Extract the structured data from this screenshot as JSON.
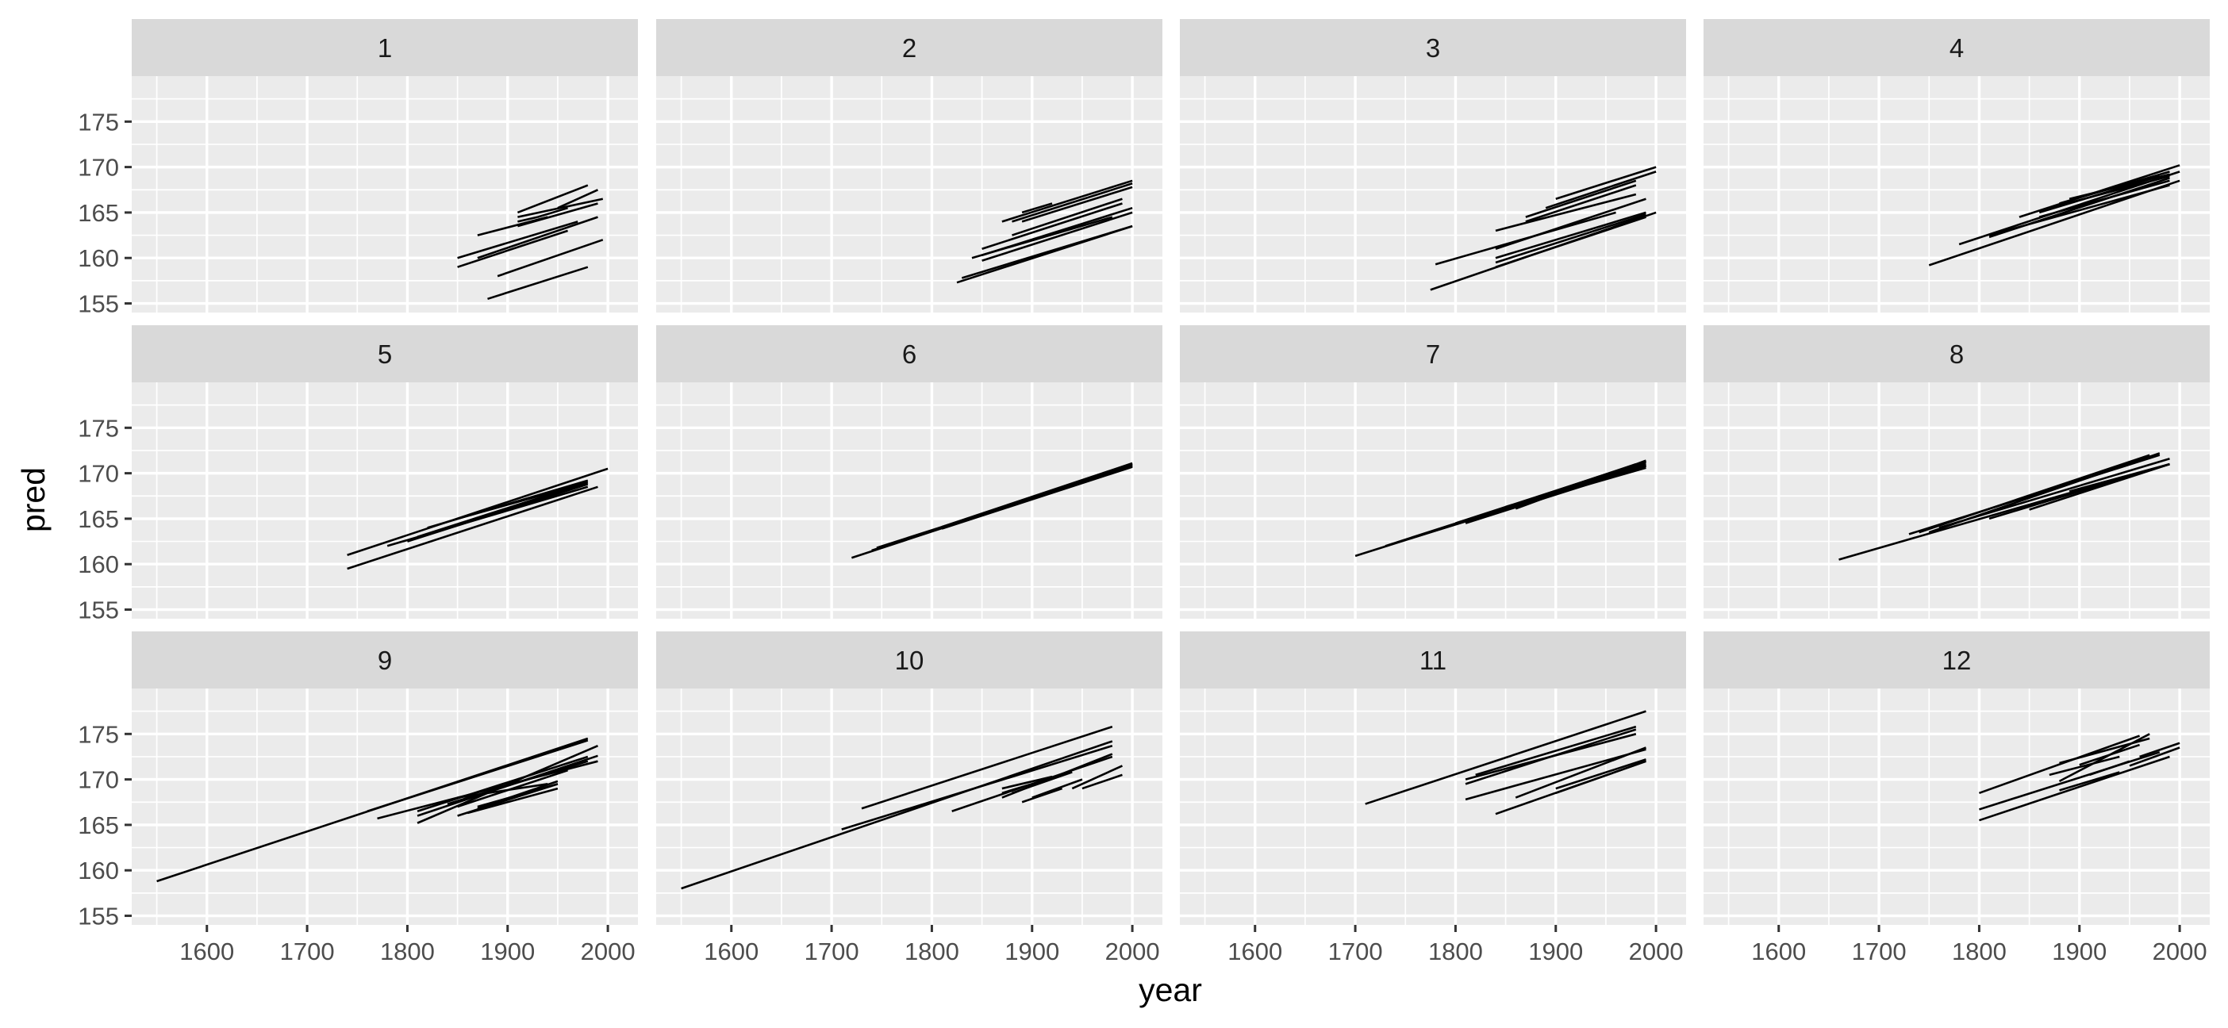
{
  "chart_data": {
    "type": "line",
    "facet_layout": {
      "ncol": 4,
      "nrow": 3
    },
    "xlabel": "year",
    "ylabel": "pred",
    "xlim": [
      1525,
      2030
    ],
    "ylim": [
      154,
      180
    ],
    "x_ticks": [
      1600,
      1700,
      1800,
      1900,
      2000
    ],
    "y_ticks": [
      155,
      160,
      165,
      170,
      175
    ],
    "grid": true,
    "facets": [
      {
        "label": "1",
        "segments": [
          [
            1880,
            155.5,
            1980,
            159
          ],
          [
            1890,
            158,
            1995,
            162
          ],
          [
            1850,
            159,
            1960,
            163
          ],
          [
            1870,
            160,
            1990,
            164.5
          ],
          [
            1850,
            160,
            1970,
            164
          ],
          [
            1870,
            162.5,
            1940,
            164.5
          ],
          [
            1910,
            164,
            1930,
            164.5
          ],
          [
            1910,
            163.5,
            1990,
            166
          ],
          [
            1910,
            164.5,
            1995,
            166.5
          ],
          [
            1910,
            165,
            1980,
            168
          ],
          [
            1950,
            165.5,
            1990,
            167.5
          ],
          [
            1930,
            164.5,
            1960,
            165.5
          ]
        ]
      },
      {
        "label": "2",
        "segments": [
          [
            1825,
            157.3,
            2000,
            163.5
          ],
          [
            1830,
            157.8,
            2000,
            163.5
          ],
          [
            1850,
            159.7,
            2000,
            165
          ],
          [
            1850,
            161,
            1990,
            166
          ],
          [
            1880,
            162.5,
            1990,
            166.5
          ],
          [
            1870,
            164,
            2000,
            168.5
          ],
          [
            1880,
            164,
            2000,
            168.2
          ],
          [
            1890,
            164,
            2000,
            167.8
          ],
          [
            1890,
            165,
            1920,
            166
          ],
          [
            1850,
            160.3,
            2000,
            165.5
          ],
          [
            1840,
            160,
            1980,
            164.5
          ]
        ]
      },
      {
        "label": "3",
        "segments": [
          [
            1775,
            156.5,
            2000,
            165
          ],
          [
            1780,
            159.3,
            1960,
            165
          ],
          [
            1840,
            159,
            1990,
            164.5
          ],
          [
            1840,
            159.5,
            1990,
            164.8
          ],
          [
            1840,
            160,
            1990,
            165
          ],
          [
            1840,
            161,
            1990,
            166.5
          ],
          [
            1840,
            163,
            1980,
            167
          ],
          [
            1870,
            164,
            1980,
            168
          ],
          [
            1870,
            164.5,
            1980,
            168.5
          ],
          [
            1890,
            165.5,
            2000,
            169.5
          ],
          [
            1900,
            166.5,
            2000,
            170
          ]
        ]
      },
      {
        "label": "4",
        "segments": [
          [
            1750,
            159.2,
            2000,
            168.5
          ],
          [
            1780,
            161.5,
            2000,
            169.5
          ],
          [
            1810,
            162.5,
            1990,
            168
          ],
          [
            1860,
            164.5,
            1990,
            168.5
          ],
          [
            1860,
            165,
            1980,
            169
          ],
          [
            1840,
            164.5,
            2000,
            170.2
          ],
          [
            1870,
            165.5,
            1990,
            169
          ],
          [
            1880,
            166,
            1990,
            169.5
          ],
          [
            1890,
            166.5,
            1990,
            169.2
          ],
          [
            1810,
            162.3,
            1990,
            168.8
          ]
        ]
      },
      {
        "label": "5",
        "segments": [
          [
            1740,
            159.5,
            1990,
            168.5
          ],
          [
            1740,
            161,
            2000,
            170.5
          ],
          [
            1780,
            162,
            1980,
            168.5
          ],
          [
            1810,
            163,
            1980,
            169
          ],
          [
            1800,
            162.5,
            1980,
            168.8
          ],
          [
            1850,
            165,
            1980,
            169
          ],
          [
            1820,
            164,
            1980,
            169.2
          ]
        ]
      },
      {
        "label": "6",
        "segments": [
          [
            1720,
            160.7,
            2000,
            170.8
          ],
          [
            1740,
            161.5,
            2000,
            171
          ],
          [
            1745,
            161.8,
            2000,
            170.8
          ],
          [
            1760,
            162.2,
            2000,
            171
          ],
          [
            1800,
            163.7,
            2000,
            170.9
          ],
          [
            1810,
            164.1,
            2000,
            171.1
          ],
          [
            1810,
            163.9,
            2000,
            170.7
          ]
        ]
      },
      {
        "label": "7",
        "segments": [
          [
            1700,
            160.9,
            1990,
            171
          ],
          [
            1730,
            162,
            1990,
            171.2
          ],
          [
            1760,
            163,
            1990,
            170.8
          ],
          [
            1800,
            164.5,
            1990,
            171.3
          ],
          [
            1810,
            164.5,
            1990,
            170.8
          ],
          [
            1830,
            165.5,
            1980,
            171
          ],
          [
            1850,
            166.3,
            1990,
            170.9
          ],
          [
            1860,
            166.1,
            1990,
            171.4
          ],
          [
            1870,
            166.8,
            1990,
            170.6
          ]
        ]
      },
      {
        "label": "8",
        "segments": [
          [
            1660,
            160.5,
            1990,
            171
          ],
          [
            1730,
            163.3,
            1980,
            172
          ],
          [
            1750,
            163.5,
            1980,
            172.2
          ],
          [
            1760,
            164,
            1990,
            171.6
          ],
          [
            1740,
            163.5,
            1970,
            172
          ],
          [
            1810,
            165,
            1990,
            171
          ],
          [
            1850,
            166,
            1990,
            171
          ],
          [
            1890,
            168,
            1990,
            171
          ]
        ]
      },
      {
        "label": "9",
        "segments": [
          [
            1550,
            158.8,
            1980,
            174.5
          ],
          [
            1760,
            166.5,
            1980,
            174.3
          ],
          [
            1770,
            165.7,
            1990,
            172
          ],
          [
            1810,
            165.2,
            1990,
            173.7
          ],
          [
            1810,
            166,
            1990,
            172.6
          ],
          [
            1810,
            166.5,
            1980,
            172.5
          ],
          [
            1840,
            167.3,
            1980,
            172
          ],
          [
            1850,
            167,
            1960,
            171
          ],
          [
            1850,
            166,
            1950,
            169.5
          ],
          [
            1860,
            166.3,
            1950,
            169
          ],
          [
            1870,
            166.8,
            1950,
            169.8
          ],
          [
            1850,
            168,
            1940,
            169.5
          ],
          [
            1870,
            167,
            1950,
            169.5
          ]
        ]
      },
      {
        "label": "10",
        "segments": [
          [
            1550,
            158,
            1980,
            174.2
          ],
          [
            1710,
            164.5,
            1980,
            173.7
          ],
          [
            1730,
            166.8,
            1980,
            175.8
          ],
          [
            1820,
            166.5,
            1980,
            172.5
          ],
          [
            1870,
            168,
            1980,
            172.8
          ],
          [
            1870,
            168.5,
            1930,
            170.5
          ],
          [
            1880,
            168.5,
            1940,
            170.8
          ],
          [
            1890,
            167.5,
            1930,
            169
          ],
          [
            1940,
            169,
            1990,
            171.5
          ],
          [
            1950,
            169,
            1990,
            170.5
          ],
          [
            1900,
            168,
            1950,
            170
          ],
          [
            1870,
            169,
            1920,
            170.3
          ]
        ]
      },
      {
        "label": "11",
        "segments": [
          [
            1710,
            167.3,
            1990,
            177.5
          ],
          [
            1810,
            169.5,
            1980,
            175.5
          ],
          [
            1810,
            170,
            1980,
            175
          ],
          [
            1820,
            170.5,
            1980,
            175.8
          ],
          [
            1810,
            167.8,
            1990,
            173.3
          ],
          [
            1840,
            166.2,
            1990,
            172
          ],
          [
            1860,
            168,
            1990,
            173.5
          ],
          [
            1900,
            168.5,
            1990,
            172
          ],
          [
            1900,
            169,
            1990,
            172.2
          ]
        ]
      },
      {
        "label": "12",
        "segments": [
          [
            1800,
            165.5,
            1990,
            172.5
          ],
          [
            1800,
            166.7,
            1980,
            173
          ],
          [
            1800,
            168.5,
            1960,
            174.8
          ],
          [
            1870,
            170.5,
            1940,
            172.5
          ],
          [
            1880,
            168.8,
            1940,
            170.8
          ],
          [
            1880,
            169.8,
            1970,
            175
          ],
          [
            1880,
            171.8,
            1970,
            174.5
          ],
          [
            1900,
            171.6,
            1960,
            173.8
          ],
          [
            1910,
            170.5,
            1950,
            172
          ],
          [
            1950,
            171.5,
            2000,
            173.5
          ],
          [
            1960,
            172.5,
            2000,
            174
          ]
        ]
      }
    ]
  }
}
